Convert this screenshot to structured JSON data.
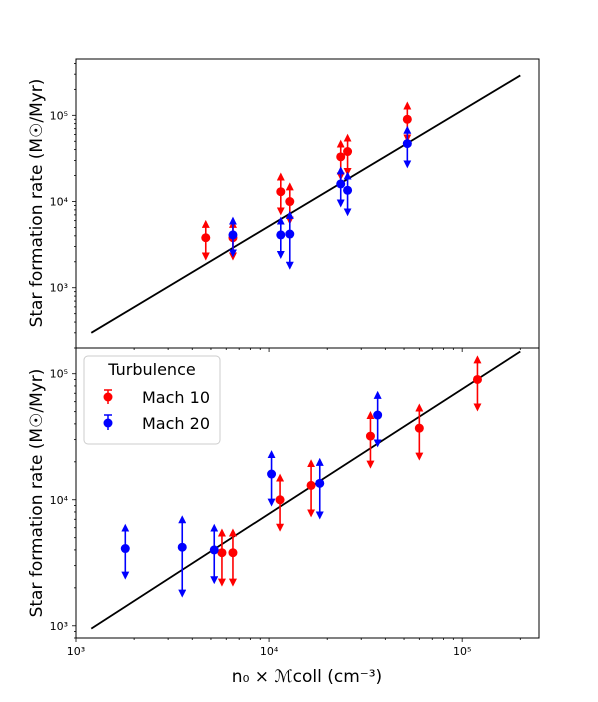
{
  "chart_data": {
    "type": "scatter",
    "xlabel": "n₀ × ℳcoll (cm⁻³)",
    "legend": {
      "title": "Turbulence",
      "placement": "top-left",
      "entries": [
        {
          "name": "Mach 10",
          "color": "#ff0000"
        },
        {
          "name": "Mach 20",
          "color": "#0000ff"
        }
      ]
    },
    "panels": [
      {
        "ylabel": "Star formation rate (M☉/Myr)",
        "xscale": "log",
        "yscale": "log",
        "xlim": [
          1000,
          250000
        ],
        "ylim": [
          200,
          450000
        ],
        "y_ticks": [
          "10³",
          "10⁴",
          "10⁵"
        ],
        "show_legend": false,
        "fit_line": {
          "x": [
            1200,
            200000
          ],
          "y": [
            300,
            290000
          ],
          "color": "#000000"
        },
        "series": [
          {
            "name": "Mach 10",
            "color": "#ff0000",
            "points": [
              {
                "x": 4700,
                "y": 3800,
                "lo": 2300,
                "hi": 5500
              },
              {
                "x": 6500,
                "y": 3800,
                "lo": 2300,
                "hi": 5500
              },
              {
                "x": 11500,
                "y": 13000,
                "lo": 7700,
                "hi": 19500
              },
              {
                "x": 12800,
                "y": 10000,
                "lo": 6000,
                "hi": 15000
              },
              {
                "x": 23500,
                "y": 33000,
                "lo": 19500,
                "hi": 47000
              },
              {
                "x": 25500,
                "y": 38000,
                "lo": 22000,
                "hi": 55000
              },
              {
                "x": 52000,
                "y": 90000,
                "lo": 54000,
                "hi": 130000
              }
            ]
          },
          {
            "name": "Mach 20",
            "color": "#0000ff",
            "points": [
              {
                "x": 6500,
                "y": 4100,
                "lo": 2500,
                "hi": 6000
              },
              {
                "x": 11500,
                "y": 4100,
                "lo": 2400,
                "hi": 6000
              },
              {
                "x": 12800,
                "y": 4200,
                "lo": 1800,
                "hi": 7000
              },
              {
                "x": 23500,
                "y": 16000,
                "lo": 9500,
                "hi": 23000
              },
              {
                "x": 25500,
                "y": 13500,
                "lo": 7500,
                "hi": 20000
              },
              {
                "x": 52000,
                "y": 47000,
                "lo": 27000,
                "hi": 68000
              }
            ]
          }
        ]
      },
      {
        "ylabel": "Star formation rate (M☉/Myr)",
        "xscale": "log",
        "yscale": "log",
        "xlim": [
          1000,
          250000
        ],
        "ylim": [
          800,
          160000
        ],
        "x_ticks": [
          "10³",
          "10⁴",
          "10⁵"
        ],
        "y_ticks": [
          "10³",
          "10⁴",
          "10⁵"
        ],
        "show_legend": true,
        "fit_line": {
          "x": [
            1200,
            200000
          ],
          "y": [
            950,
            150000
          ],
          "color": "#000000"
        },
        "series": [
          {
            "name": "Mach 10",
            "color": "#ff0000",
            "points": [
              {
                "x": 5700,
                "y": 3800,
                "lo": 2200,
                "hi": 5500
              },
              {
                "x": 6500,
                "y": 3800,
                "lo": 2200,
                "hi": 5500
              },
              {
                "x": 11400,
                "y": 10000,
                "lo": 6000,
                "hi": 15000
              },
              {
                "x": 16500,
                "y": 13000,
                "lo": 7800,
                "hi": 19500
              },
              {
                "x": 33500,
                "y": 32000,
                "lo": 19000,
                "hi": 47000
              },
              {
                "x": 60000,
                "y": 37000,
                "lo": 22000,
                "hi": 54000
              },
              {
                "x": 120000,
                "y": 90000,
                "lo": 54000,
                "hi": 130000
              }
            ]
          },
          {
            "name": "Mach 20",
            "color": "#0000ff",
            "points": [
              {
                "x": 1800,
                "y": 4100,
                "lo": 2500,
                "hi": 6000
              },
              {
                "x": 3550,
                "y": 4200,
                "lo": 1800,
                "hi": 7000
              },
              {
                "x": 5200,
                "y": 4000,
                "lo": 2300,
                "hi": 6000
              },
              {
                "x": 10300,
                "y": 16000,
                "lo": 9500,
                "hi": 23000
              },
              {
                "x": 18300,
                "y": 13500,
                "lo": 7500,
                "hi": 20000
              },
              {
                "x": 36500,
                "y": 47000,
                "lo": 28000,
                "hi": 68000
              }
            ]
          }
        ]
      }
    ]
  }
}
